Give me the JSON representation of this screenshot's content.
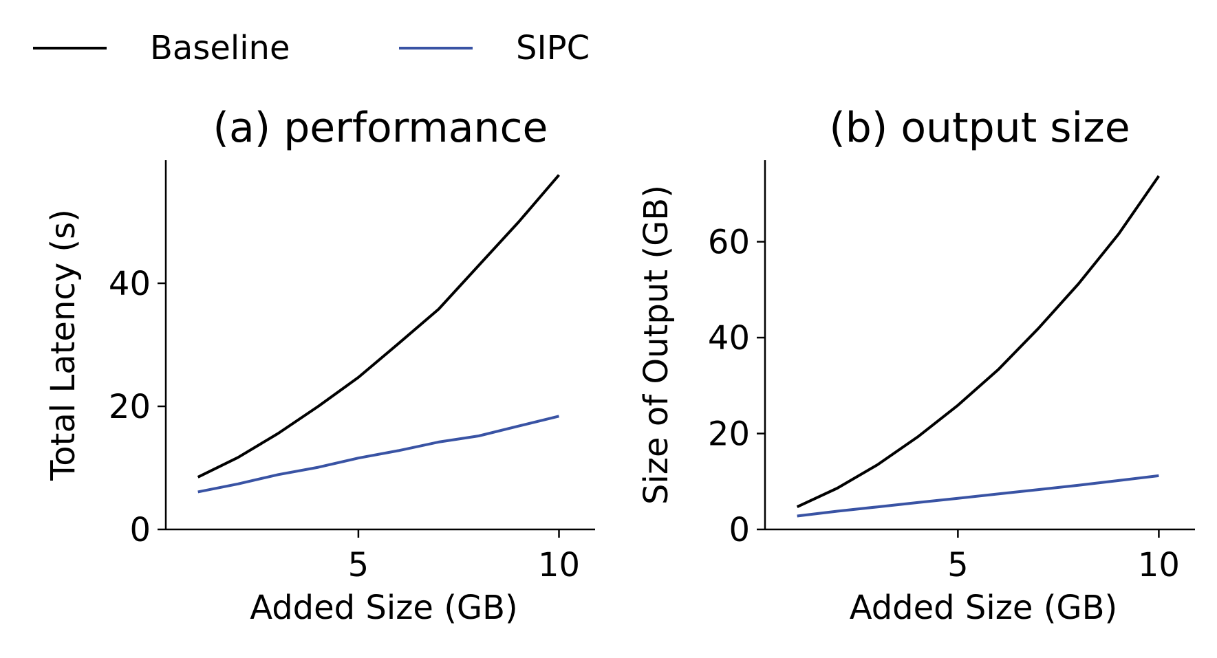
{
  "legend": {
    "items": [
      {
        "label": "Baseline",
        "color": "#000000"
      },
      {
        "label": "SIPC",
        "color": "#3953a4"
      }
    ]
  },
  "chart_data": [
    {
      "type": "line",
      "title": "(a) performance",
      "xlabel": "Added Size (GB)",
      "ylabel": "Total Latency (s)",
      "xlim": [
        0.2,
        10.9
      ],
      "ylim": [
        0,
        60
      ],
      "xticks": [
        5,
        10
      ],
      "yticks": [
        0,
        20,
        40
      ],
      "x": [
        1,
        2,
        3,
        4,
        5,
        6,
        7,
        8,
        9,
        10
      ],
      "series": [
        {
          "name": "Baseline",
          "color": "#000000",
          "values": [
            8.5,
            11.7,
            15.6,
            20.0,
            24.7,
            30.2,
            35.8,
            42.9,
            50.0,
            57.6
          ]
        },
        {
          "name": "SIPC",
          "color": "#3953a4",
          "values": [
            6.1,
            7.4,
            8.9,
            10.1,
            11.6,
            12.8,
            14.2,
            15.2,
            16.8,
            18.4
          ]
        }
      ]
    },
    {
      "type": "line",
      "title": "(b) output size",
      "xlabel": "Added Size (GB)",
      "ylabel": "Size of Output (GB)",
      "xlim": [
        0.2,
        10.9
      ],
      "ylim": [
        0,
        77
      ],
      "xticks": [
        5,
        10
      ],
      "yticks": [
        0,
        20,
        40,
        60
      ],
      "x": [
        1,
        2,
        3,
        4,
        5,
        6,
        7,
        8,
        9,
        10
      ],
      "series": [
        {
          "name": "Baseline",
          "color": "#000000",
          "values": [
            4.7,
            8.6,
            13.5,
            19.3,
            25.9,
            33.3,
            41.9,
            51.2,
            61.6,
            73.7
          ]
        },
        {
          "name": "SIPC",
          "color": "#3953a4",
          "values": [
            2.8,
            3.8,
            4.7,
            5.6,
            6.5,
            7.4,
            8.3,
            9.2,
            10.2,
            11.2
          ]
        }
      ]
    }
  ]
}
